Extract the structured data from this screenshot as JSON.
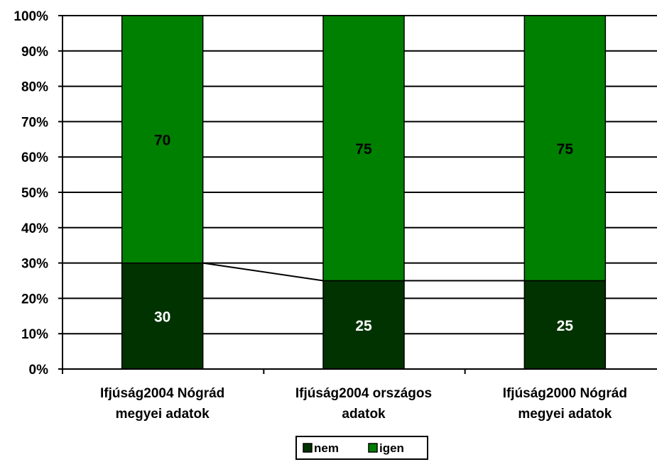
{
  "chart_data": {
    "type": "bar",
    "stacked": true,
    "percent": true,
    "categories": [
      [
        "Ifjúság2004 Nógrád",
        "megyei adatok"
      ],
      [
        "Ifjúság2004 országos",
        "adatok"
      ],
      [
        "Ifjúság2000 Nógrád",
        "megyei adatok"
      ]
    ],
    "series": [
      {
        "name": "nem",
        "values": [
          30,
          25,
          25
        ],
        "color": "#003300",
        "label_color": "#ffffff"
      },
      {
        "name": "igen",
        "values": [
          70,
          75,
          75
        ],
        "color": "#008000",
        "label_color": "#000000"
      }
    ],
    "yticks": [
      "0%",
      "10%",
      "20%",
      "30%",
      "40%",
      "50%",
      "60%",
      "70%",
      "80%",
      "90%",
      "100%"
    ],
    "ylim": [
      0,
      100
    ],
    "grid": true,
    "series_lines": true,
    "legend": "bottom"
  }
}
